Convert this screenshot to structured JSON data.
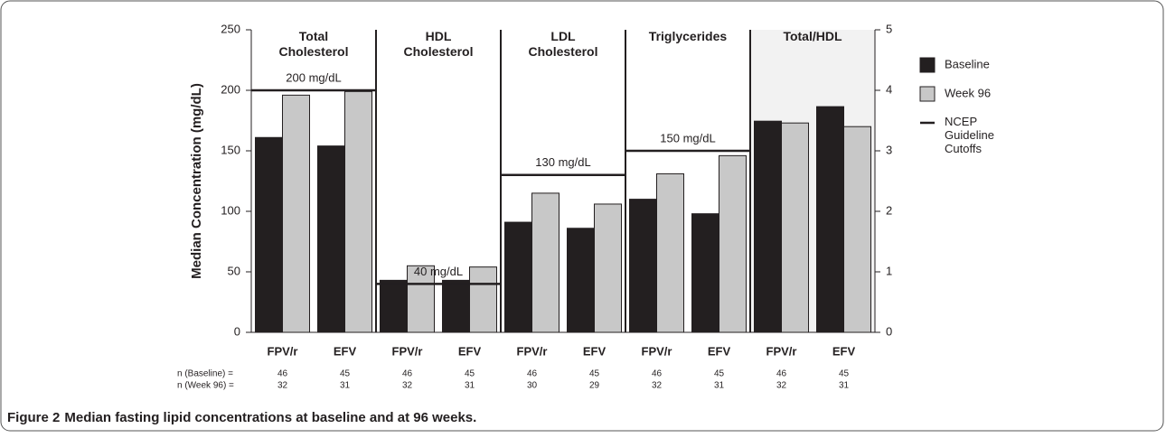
{
  "chart_data": {
    "type": "bar",
    "y_label": "Median Concentration (mg/dL)",
    "ylim": [
      0,
      250
    ],
    "yticks": [
      0,
      50,
      100,
      150,
      200,
      250
    ],
    "y2lim": [
      0,
      5
    ],
    "y2ticks": [
      0,
      1,
      2,
      3,
      4,
      5
    ],
    "legend": "right",
    "series": [
      {
        "name": "Baseline",
        "color": "#231f20"
      },
      {
        "name": "Week 96",
        "color": "#c8c8c8"
      }
    ],
    "cutoff_name": [
      "NCEP",
      "Guideline",
      "Cutoffs"
    ],
    "n_labels": [
      "n (Baseline) =",
      "n (Week 96) ="
    ],
    "panels": [
      {
        "title": [
          "Total",
          "Cholesterol"
        ],
        "axis": "y",
        "categories": [
          "FPV/r",
          "EFV"
        ],
        "series_values": [
          [
            161,
            154
          ],
          [
            196,
            199
          ]
        ],
        "cutoff": 200,
        "cutoff_label": "200 mg/dL",
        "n": [
          [
            46,
            45
          ],
          [
            32,
            31
          ]
        ]
      },
      {
        "title": [
          "HDL",
          "Cholesterol"
        ],
        "axis": "y",
        "categories": [
          "FPV/r",
          "EFV"
        ],
        "series_values": [
          [
            43,
            43
          ],
          [
            55,
            54
          ]
        ],
        "cutoff": 40,
        "cutoff_label": "40 mg/dL",
        "n": [
          [
            46,
            45
          ],
          [
            32,
            31
          ]
        ]
      },
      {
        "title": [
          "LDL",
          "Cholesterol"
        ],
        "axis": "y",
        "categories": [
          "FPV/r",
          "EFV"
        ],
        "series_values": [
          [
            91,
            86
          ],
          [
            115,
            106
          ]
        ],
        "cutoff": 130,
        "cutoff_label": "130 mg/dL",
        "n": [
          [
            46,
            45
          ],
          [
            30,
            29
          ]
        ]
      },
      {
        "title": [
          "Triglycerides"
        ],
        "axis": "y",
        "categories": [
          "FPV/r",
          "EFV"
        ],
        "series_values": [
          [
            110,
            98
          ],
          [
            131,
            146
          ]
        ],
        "cutoff": 150,
        "cutoff_label": "150 mg/dL",
        "n": [
          [
            46,
            45
          ],
          [
            32,
            31
          ]
        ]
      },
      {
        "title": [
          "Total/HDL"
        ],
        "axis": "y2",
        "categories": [
          "FPV/r",
          "EFV"
        ],
        "series_values": [
          [
            3.49,
            3.73
          ],
          [
            3.46,
            3.4
          ]
        ],
        "n": [
          [
            46,
            45
          ],
          [
            32,
            31
          ]
        ]
      }
    ]
  },
  "caption": {
    "label": "Figure 2",
    "text": "Median fasting lipid concentrations at baseline and at 96 weeks."
  }
}
